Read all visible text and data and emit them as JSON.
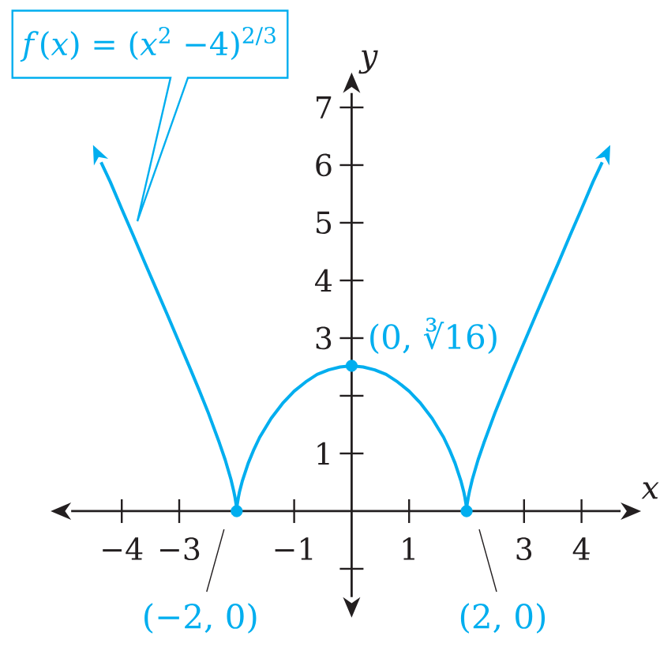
{
  "chart_data": {
    "type": "line",
    "xlabel": "x",
    "ylabel": "y",
    "xlim": [
      -4.88,
      4.68
    ],
    "ylim": [
      -1.49,
      7.25
    ],
    "xticks": [
      {
        "value": -4,
        "label": "−4"
      },
      {
        "value": -3,
        "label": "−3"
      },
      {
        "value": -1,
        "label": "−1"
      },
      1,
      3,
      4
    ],
    "yticks": [
      {
        "value": -1,
        "label": null
      },
      1,
      {
        "value": 2,
        "label": null
      },
      3,
      4,
      5,
      6,
      7
    ],
    "marker": "none",
    "series": [
      {
        "name": "*f*(*x*) = (*x*$^{2}$ −4)$^{2/3}$",
        "color": "#00aeef",
        "line_style": "solid",
        "x": [
          -4.36,
          -4.2,
          -4,
          -3.8,
          -3.6,
          -3.4,
          -3.2,
          -3.0,
          -2.8,
          -2.65,
          -2.5,
          -2.3,
          -2.2,
          -2.1,
          -2.05,
          -2.03,
          -2.01,
          -2,
          -1.99,
          -1.97,
          -1.95,
          -1.9,
          -1.8,
          -1.7,
          -1.6,
          -1.4,
          -1.2,
          -1.0,
          -0.8,
          -0.6,
          -0.4,
          -0.2,
          0,
          0.2,
          0.4,
          0.6,
          0.8,
          1.0,
          1.2,
          1.4,
          1.6,
          1.7,
          1.8,
          1.9,
          1.95,
          1.97,
          1.99,
          2,
          2.01,
          2.03,
          2.05,
          2.1,
          2.2,
          2.3,
          2.5,
          2.65,
          2.8,
          3.0,
          3.2,
          3.4,
          3.6,
          3.8,
          4,
          4.2,
          4.36
        ],
        "values": [
          6.05,
          5.71,
          5.24,
          4.78,
          4.31,
          3.85,
          3.39,
          2.92,
          2.45,
          2.09,
          1.72,
          1.18,
          0.89,
          0.55,
          0.34,
          0.24,
          0.12,
          0,
          0.12,
          0.24,
          0.34,
          0.53,
          0.83,
          1.07,
          1.28,
          1.61,
          1.87,
          2.08,
          2.24,
          2.37,
          2.45,
          2.5,
          2.52,
          2.5,
          2.45,
          2.37,
          2.24,
          2.08,
          1.87,
          1.61,
          1.28,
          1.07,
          0.83,
          0.53,
          0.34,
          0.24,
          0.12,
          0,
          0.12,
          0.24,
          0.34,
          0.55,
          0.89,
          1.18,
          1.72,
          2.09,
          2.45,
          2.92,
          3.39,
          3.85,
          4.31,
          4.78,
          5.24,
          5.71,
          6.05
        ]
      },
      {
        "type": "scatter",
        "color": "#00aeef",
        "marker": "circle",
        "x": [
          -2,
          0,
          2
        ],
        "values": [
          0,
          2.52,
          0
        ]
      }
    ],
    "annotations": [
      {
        "text": "(−2, 0)",
        "x": -2,
        "y": 0
      },
      {
        "text": "(0, ∛16)",
        "x": 0,
        "y": 2.52
      },
      {
        "text": "(2, 0)",
        "x": 2,
        "y": 0
      }
    ]
  }
}
